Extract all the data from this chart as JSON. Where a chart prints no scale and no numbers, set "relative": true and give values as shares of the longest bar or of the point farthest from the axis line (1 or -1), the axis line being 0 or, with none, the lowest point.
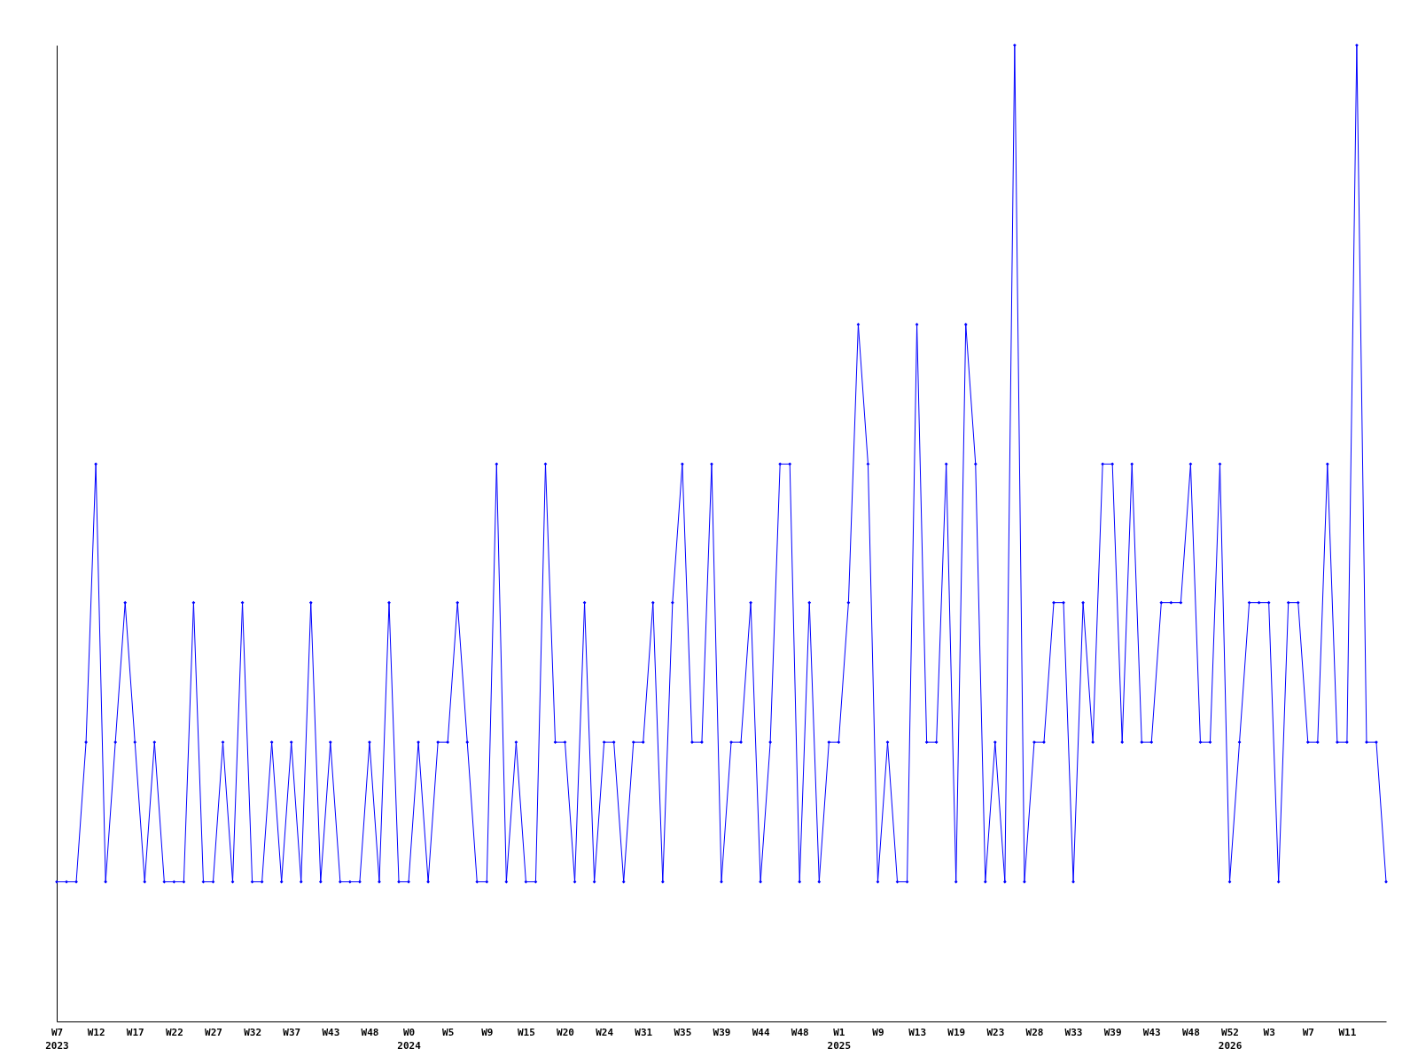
{
  "chart_data": {
    "type": "line",
    "relative": true,
    "marker": "diamond",
    "categories": [
      "W7\n2023",
      null,
      null,
      null,
      "W12",
      null,
      null,
      null,
      "W17",
      null,
      null,
      null,
      "W22",
      null,
      null,
      null,
      "W27",
      null,
      null,
      null,
      "W32",
      null,
      null,
      null,
      "W37",
      null,
      null,
      null,
      "W43",
      null,
      null,
      null,
      "W48",
      null,
      null,
      null,
      "W0\n2024",
      null,
      null,
      null,
      "W5",
      null,
      null,
      null,
      "W9",
      null,
      null,
      null,
      "W15",
      null,
      null,
      null,
      "W20",
      null,
      null,
      null,
      "W24",
      null,
      null,
      null,
      "W31",
      null,
      null,
      null,
      "W35",
      null,
      null,
      null,
      "W39",
      null,
      null,
      null,
      "W44",
      null,
      null,
      null,
      "W48",
      null,
      null,
      null,
      "W1\n2025",
      null,
      null,
      null,
      "W9",
      null,
      null,
      null,
      "W13",
      null,
      null,
      null,
      "W19",
      null,
      null,
      null,
      "W23",
      null,
      null,
      null,
      "W28",
      null,
      null,
      null,
      "W33",
      null,
      null,
      null,
      "W39",
      null,
      null,
      null,
      "W43",
      null,
      null,
      null,
      "W48",
      null,
      null,
      null,
      "W52\n2026",
      null,
      null,
      null,
      "W3",
      null,
      null,
      null,
      "W7",
      null,
      null,
      null,
      "W11",
      null,
      null,
      null,
      null
    ],
    "series": [
      {
        "color": "#0000ff",
        "values": [
          0.143,
          0.143,
          0.143,
          0.286,
          0.571,
          0.143,
          0.286,
          0.429,
          0.286,
          0.143,
          0.286,
          0.143,
          0.143,
          0.143,
          0.429,
          0.143,
          0.143,
          0.286,
          0.143,
          0.429,
          0.143,
          0.143,
          0.286,
          0.143,
          0.286,
          0.143,
          0.429,
          0.143,
          0.286,
          0.143,
          0.143,
          0.143,
          0.286,
          0.143,
          0.429,
          0.143,
          0.143,
          0.286,
          0.143,
          0.286,
          0.286,
          0.429,
          0.286,
          0.143,
          0.143,
          0.571,
          0.143,
          0.286,
          0.143,
          0.143,
          0.571,
          0.286,
          0.286,
          0.143,
          0.429,
          0.143,
          0.286,
          0.286,
          0.143,
          0.286,
          0.286,
          0.429,
          0.143,
          0.429,
          0.571,
          0.286,
          0.286,
          0.571,
          0.143,
          0.286,
          0.286,
          0.429,
          0.143,
          0.286,
          0.571,
          0.571,
          0.143,
          0.429,
          0.143,
          0.286,
          0.286,
          0.429,
          0.714,
          0.571,
          0.143,
          0.286,
          0.143,
          0.143,
          0.714,
          0.286,
          0.286,
          0.571,
          0.143,
          0.714,
          0.571,
          0.143,
          0.286,
          0.143,
          1,
          0.143,
          0.286,
          0.286,
          0.429,
          0.429,
          0.143,
          0.429,
          0.286,
          0.571,
          0.571,
          0.286,
          0.571,
          0.286,
          0.286,
          0.429,
          0.429,
          0.429,
          0.571,
          0.286,
          0.286,
          0.571,
          0.143,
          0.286,
          0.429,
          0.429,
          0.429,
          0.143,
          0.429,
          0.429,
          0.286,
          0.286,
          0.571,
          0.286,
          0.286,
          1,
          0.286,
          0.286,
          0.143
        ]
      }
    ]
  }
}
